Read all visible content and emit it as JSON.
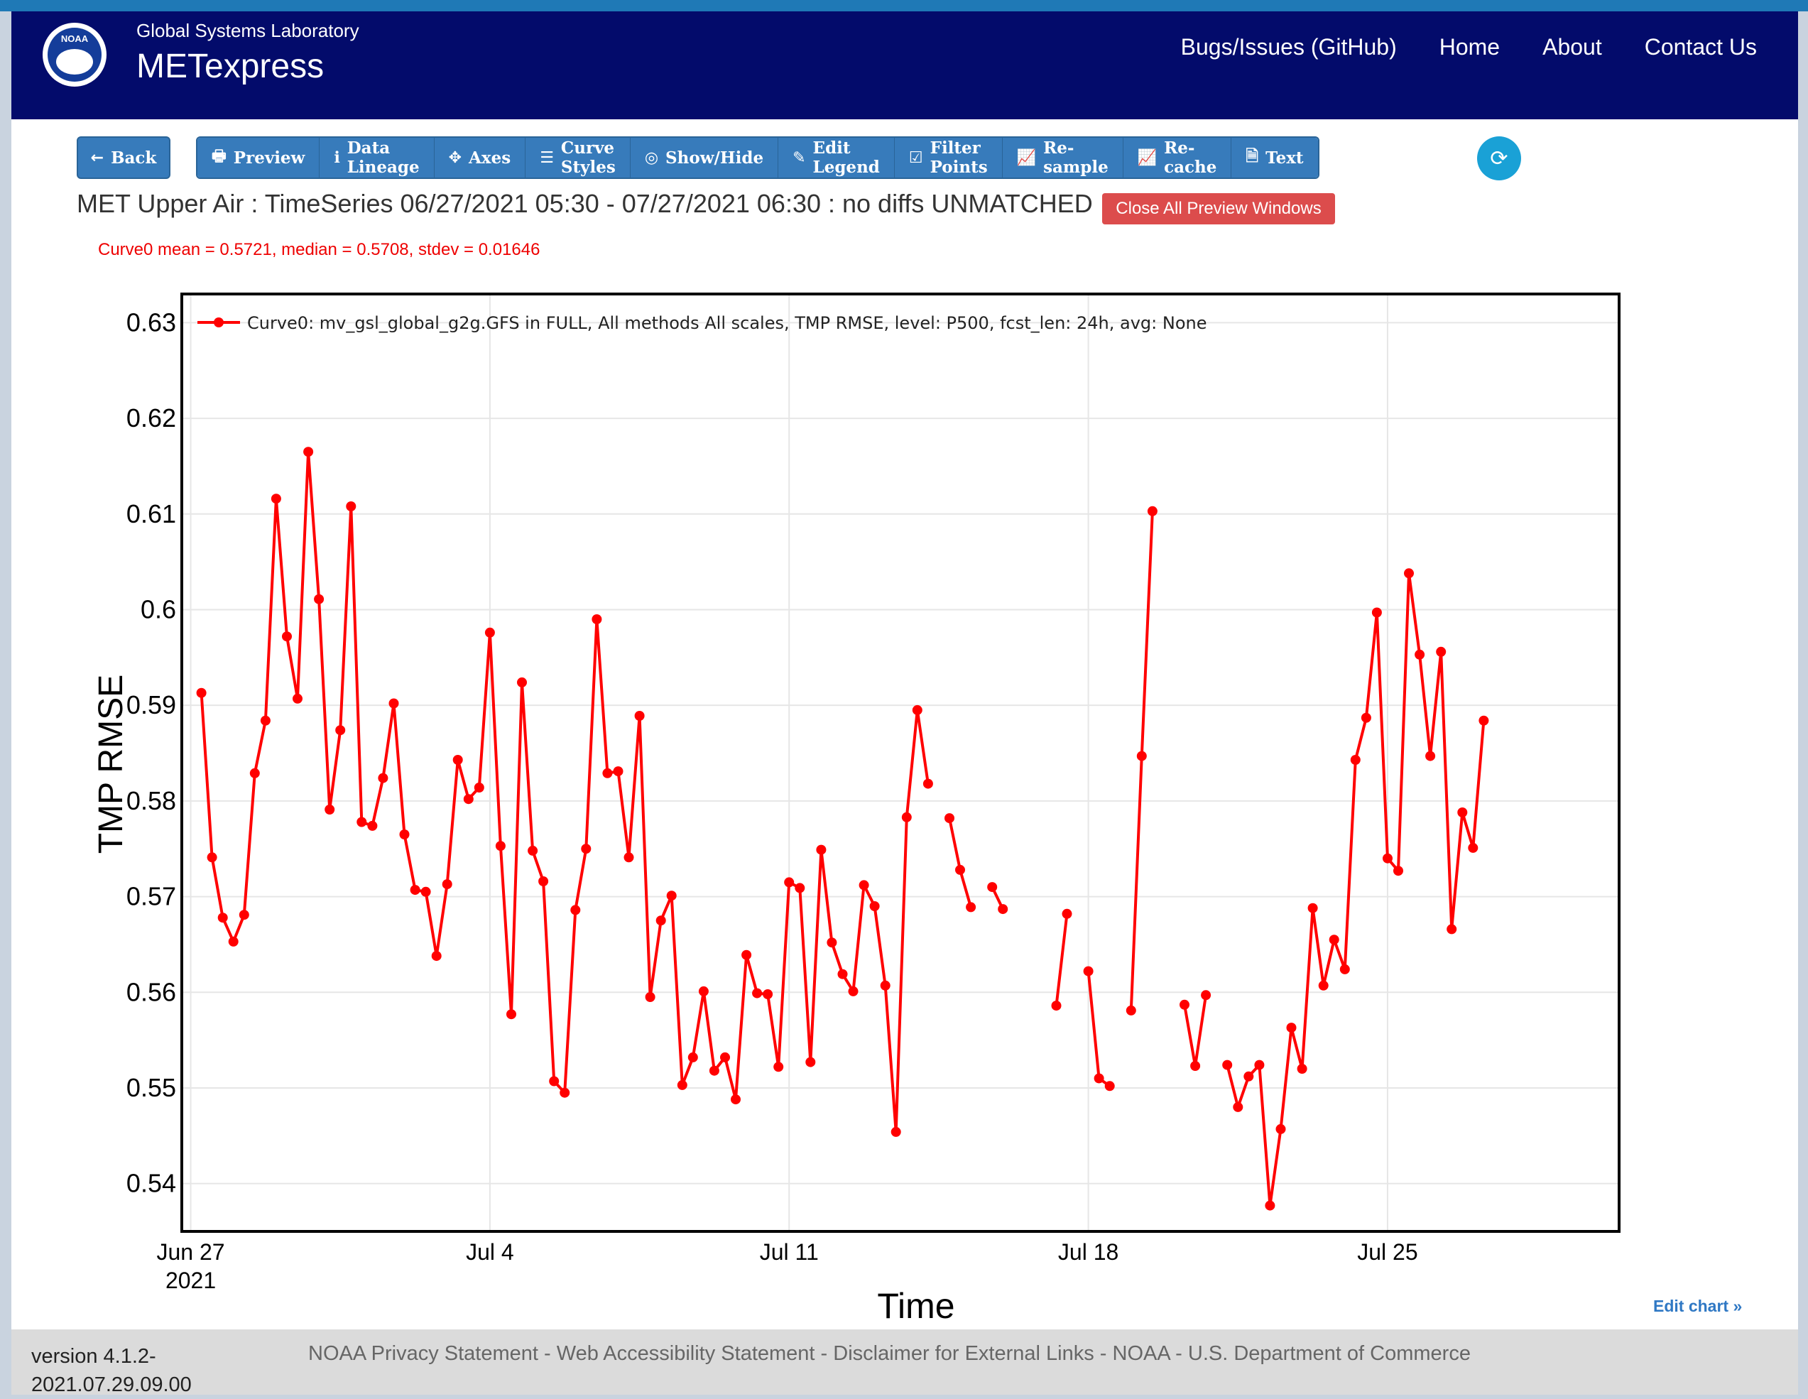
{
  "header": {
    "logo_text": "NOAA",
    "subtitle": "Global Systems Laboratory",
    "app_name": "METexpress",
    "nav": [
      "Bugs/Issues (GitHub)",
      "Home",
      "About",
      "Contact Us"
    ]
  },
  "toolbar": {
    "back": "Back",
    "buttons": [
      {
        "label": "Preview",
        "icon": "printer-icon"
      },
      {
        "label": "Data Lineage",
        "icon": "info-icon"
      },
      {
        "label": "Axes",
        "icon": "move-arrows-icon"
      },
      {
        "label": "Curve Styles",
        "icon": "list-icon"
      },
      {
        "label": "Show/Hide",
        "icon": "eye-slash-icon"
      },
      {
        "label": "Edit Legend",
        "icon": "pencil-icon"
      },
      {
        "label": "Filter Points",
        "icon": "checkbox-icon"
      },
      {
        "label": "Re-sample",
        "icon": "line-chart-icon"
      },
      {
        "label": "Re-cache",
        "icon": "line-chart-icon"
      },
      {
        "label": "Text",
        "icon": "document-icon"
      }
    ],
    "refresh_icon": "refresh-icon"
  },
  "plot": {
    "title": "MET Upper Air : TimeSeries 06/27/2021 05:30 - 07/27/2021 06:30 : no diffs UNMATCHED",
    "close_button": "Close All Preview Windows",
    "stats": "Curve0 mean = 0.5721, median = 0.5708, stdev = 0.01646",
    "edit_chart": "Edit chart »"
  },
  "chart_data": {
    "type": "line",
    "xlabel": "Time",
    "ylabel": "TMP RMSE",
    "ylim": [
      0.535,
      0.633
    ],
    "xlim": [
      "2021-06-26T19:00",
      "2021-07-30T10:00"
    ],
    "x_ticks": [
      {
        "date": "2021-06-27T00:00",
        "label": "Jun 27",
        "sublabel": "2021"
      },
      {
        "date": "2021-07-04T00:00",
        "label": "Jul 4"
      },
      {
        "date": "2021-07-11T00:00",
        "label": "Jul 11"
      },
      {
        "date": "2021-07-18T00:00",
        "label": "Jul 18"
      },
      {
        "date": "2021-07-25T00:00",
        "label": "Jul 25"
      }
    ],
    "y_ticks": [
      0.54,
      0.55,
      0.56,
      0.57,
      0.58,
      0.59,
      0.6,
      0.61,
      0.62,
      0.63
    ],
    "y_tick_labels": [
      "0.54",
      "0.55",
      "0.56",
      "0.57",
      "0.58",
      "0.59",
      "0.6",
      "0.61",
      "0.62",
      "0.63"
    ],
    "grid": true,
    "legend_position": "top-left",
    "series": [
      {
        "name": "Curve0: mv_gsl_global_g2g.GFS in FULL, All methods All scales, TMP RMSE, level: P500, fcst_len: 24h, avg: None",
        "color": "#ff0000",
        "points": [
          {
            "x": "2021-06-27T06:00",
            "y": 0.5913
          },
          {
            "x": "2021-06-27T12:00",
            "y": 0.5741
          },
          {
            "x": "2021-06-27T18:00",
            "y": 0.5678
          },
          {
            "x": "2021-06-28T00:00",
            "y": 0.5653
          },
          {
            "x": "2021-06-28T06:00",
            "y": 0.5681
          },
          {
            "x": "2021-06-28T12:00",
            "y": 0.5829
          },
          {
            "x": "2021-06-28T18:00",
            "y": 0.5884
          },
          {
            "x": "2021-06-29T00:00",
            "y": 0.6116
          },
          {
            "x": "2021-06-29T06:00",
            "y": 0.5972
          },
          {
            "x": "2021-06-29T12:00",
            "y": 0.5907
          },
          {
            "x": "2021-06-29T18:00",
            "y": 0.6165
          },
          {
            "x": "2021-06-30T00:00",
            "y": 0.6011
          },
          {
            "x": "2021-06-30T06:00",
            "y": 0.5791
          },
          {
            "x": "2021-06-30T12:00",
            "y": 0.5874
          },
          {
            "x": "2021-06-30T18:00",
            "y": 0.6108
          },
          {
            "x": "2021-07-01T00:00",
            "y": 0.5778
          },
          {
            "x": "2021-07-01T06:00",
            "y": 0.5774
          },
          {
            "x": "2021-07-01T12:00",
            "y": 0.5824
          },
          {
            "x": "2021-07-01T18:00",
            "y": 0.5902
          },
          {
            "x": "2021-07-02T00:00",
            "y": 0.5765
          },
          {
            "x": "2021-07-02T06:00",
            "y": 0.5707
          },
          {
            "x": "2021-07-02T12:00",
            "y": 0.5705
          },
          {
            "x": "2021-07-02T18:00",
            "y": 0.5638
          },
          {
            "x": "2021-07-03T00:00",
            "y": 0.5713
          },
          {
            "x": "2021-07-03T06:00",
            "y": 0.5843
          },
          {
            "x": "2021-07-03T12:00",
            "y": 0.5802
          },
          {
            "x": "2021-07-03T18:00",
            "y": 0.5814
          },
          {
            "x": "2021-07-04T00:00",
            "y": 0.5976
          },
          {
            "x": "2021-07-04T06:00",
            "y": 0.5753
          },
          {
            "x": "2021-07-04T12:00",
            "y": 0.5577
          },
          {
            "x": "2021-07-04T18:00",
            "y": 0.5924
          },
          {
            "x": "2021-07-05T00:00",
            "y": 0.5748
          },
          {
            "x": "2021-07-05T06:00",
            "y": 0.5716
          },
          {
            "x": "2021-07-05T12:00",
            "y": 0.5507
          },
          {
            "x": "2021-07-05T18:00",
            "y": 0.5495
          },
          {
            "x": "2021-07-06T00:00",
            "y": 0.5686
          },
          {
            "x": "2021-07-06T06:00",
            "y": 0.575
          },
          {
            "x": "2021-07-06T12:00",
            "y": 0.599
          },
          {
            "x": "2021-07-06T18:00",
            "y": 0.5829
          },
          {
            "x": "2021-07-07T00:00",
            "y": 0.5831
          },
          {
            "x": "2021-07-07T06:00",
            "y": 0.5741
          },
          {
            "x": "2021-07-07T12:00",
            "y": 0.5889
          },
          {
            "x": "2021-07-07T18:00",
            "y": 0.5595
          },
          {
            "x": "2021-07-08T00:00",
            "y": 0.5675
          },
          {
            "x": "2021-07-08T06:00",
            "y": 0.5701
          },
          {
            "x": "2021-07-08T12:00",
            "y": 0.5503
          },
          {
            "x": "2021-07-08T18:00",
            "y": 0.5532
          },
          {
            "x": "2021-07-09T00:00",
            "y": 0.5601
          },
          {
            "x": "2021-07-09T06:00",
            "y": 0.5518
          },
          {
            "x": "2021-07-09T12:00",
            "y": 0.5532
          },
          {
            "x": "2021-07-09T18:00",
            "y": 0.5488
          },
          {
            "x": "2021-07-10T00:00",
            "y": 0.5639
          },
          {
            "x": "2021-07-10T06:00",
            "y": 0.5599
          },
          {
            "x": "2021-07-10T12:00",
            "y": 0.5598
          },
          {
            "x": "2021-07-10T18:00",
            "y": 0.5522
          },
          {
            "x": "2021-07-11T00:00",
            "y": 0.5715
          },
          {
            "x": "2021-07-11T06:00",
            "y": 0.5709
          },
          {
            "x": "2021-07-11T12:00",
            "y": 0.5527
          },
          {
            "x": "2021-07-11T18:00",
            "y": 0.5749
          },
          {
            "x": "2021-07-12T00:00",
            "y": 0.5652
          },
          {
            "x": "2021-07-12T06:00",
            "y": 0.5619
          },
          {
            "x": "2021-07-12T12:00",
            "y": 0.5601
          },
          {
            "x": "2021-07-12T18:00",
            "y": 0.5712
          },
          {
            "x": "2021-07-13T00:00",
            "y": 0.569
          },
          {
            "x": "2021-07-13T06:00",
            "y": 0.5607
          },
          {
            "x": "2021-07-13T12:00",
            "y": 0.5454
          },
          {
            "x": "2021-07-13T18:00",
            "y": 0.5783
          },
          {
            "x": "2021-07-14T00:00",
            "y": 0.5895
          },
          {
            "x": "2021-07-14T06:00",
            "y": 0.5818
          },
          {
            "x": "2021-07-14T12:00",
            "y": null
          },
          {
            "x": "2021-07-14T18:00",
            "y": 0.5782
          },
          {
            "x": "2021-07-15T00:00",
            "y": 0.5728
          },
          {
            "x": "2021-07-15T06:00",
            "y": 0.5689
          },
          {
            "x": "2021-07-15T12:00",
            "y": null
          },
          {
            "x": "2021-07-15T18:00",
            "y": 0.571
          },
          {
            "x": "2021-07-16T00:00",
            "y": 0.5687
          },
          {
            "x": "2021-07-16T06:00",
            "y": null
          },
          {
            "x": "2021-07-16T12:00",
            "y": null
          },
          {
            "x": "2021-07-16T18:00",
            "y": null
          },
          {
            "x": "2021-07-17T00:00",
            "y": null
          },
          {
            "x": "2021-07-17T06:00",
            "y": 0.5586
          },
          {
            "x": "2021-07-17T12:00",
            "y": 0.5682
          },
          {
            "x": "2021-07-17T18:00",
            "y": null
          },
          {
            "x": "2021-07-18T00:00",
            "y": 0.5622
          },
          {
            "x": "2021-07-18T06:00",
            "y": 0.551
          },
          {
            "x": "2021-07-18T12:00",
            "y": 0.5502
          },
          {
            "x": "2021-07-18T18:00",
            "y": null
          },
          {
            "x": "2021-07-19T00:00",
            "y": 0.5581
          },
          {
            "x": "2021-07-19T06:00",
            "y": 0.5847
          },
          {
            "x": "2021-07-19T12:00",
            "y": 0.6103
          },
          {
            "x": "2021-07-19T18:00",
            "y": null
          },
          {
            "x": "2021-07-20T00:00",
            "y": null
          },
          {
            "x": "2021-07-20T06:00",
            "y": 0.5587
          },
          {
            "x": "2021-07-20T12:00",
            "y": 0.5523
          },
          {
            "x": "2021-07-20T18:00",
            "y": 0.5597
          },
          {
            "x": "2021-07-21T00:00",
            "y": null
          },
          {
            "x": "2021-07-21T06:00",
            "y": 0.5524
          },
          {
            "x": "2021-07-21T12:00",
            "y": 0.548
          },
          {
            "x": "2021-07-21T18:00",
            "y": 0.5512
          },
          {
            "x": "2021-07-22T00:00",
            "y": 0.5524
          },
          {
            "x": "2021-07-22T06:00",
            "y": 0.5377
          },
          {
            "x": "2021-07-22T12:00",
            "y": 0.5457
          },
          {
            "x": "2021-07-22T18:00",
            "y": 0.5563
          },
          {
            "x": "2021-07-23T00:00",
            "y": 0.552
          },
          {
            "x": "2021-07-23T06:00",
            "y": 0.5688
          },
          {
            "x": "2021-07-23T12:00",
            "y": 0.5607
          },
          {
            "x": "2021-07-23T18:00",
            "y": 0.5655
          },
          {
            "x": "2021-07-24T00:00",
            "y": 0.5624
          },
          {
            "x": "2021-07-24T06:00",
            "y": 0.5843
          },
          {
            "x": "2021-07-24T12:00",
            "y": 0.5887
          },
          {
            "x": "2021-07-24T18:00",
            "y": 0.5997
          },
          {
            "x": "2021-07-25T00:00",
            "y": 0.574
          },
          {
            "x": "2021-07-25T06:00",
            "y": 0.5727
          },
          {
            "x": "2021-07-25T12:00",
            "y": 0.6038
          },
          {
            "x": "2021-07-25T18:00",
            "y": 0.5953
          },
          {
            "x": "2021-07-26T00:00",
            "y": 0.5847
          },
          {
            "x": "2021-07-26T06:00",
            "y": 0.5956
          },
          {
            "x": "2021-07-26T12:00",
            "y": 0.5666
          },
          {
            "x": "2021-07-26T18:00",
            "y": 0.5788
          },
          {
            "x": "2021-07-27T00:00",
            "y": 0.5751
          },
          {
            "x": "2021-07-27T06:00",
            "y": 0.5884
          }
        ]
      }
    ]
  },
  "footer": {
    "version_line1": "version 4.1.2-",
    "version_line2": "2021.07.29.09.00",
    "links": [
      "NOAA Privacy Statement",
      "Web Accessibility Statement",
      "Disclaimer for External Links",
      "NOAA",
      "U.S. Department of Commerce"
    ],
    "separator": " - "
  }
}
